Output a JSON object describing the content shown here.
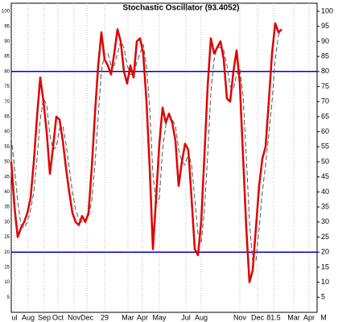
{
  "chart_data": {
    "type": "line",
    "title": "Stochastic Oscillator (93.4052)",
    "x": [
      0,
      1,
      2,
      3,
      4,
      5,
      6,
      7,
      8,
      9,
      10,
      11,
      12,
      13,
      14,
      15,
      16,
      17,
      18,
      19,
      20,
      21,
      22,
      23,
      24,
      25,
      26,
      27,
      28,
      29,
      30,
      31,
      32,
      33,
      34,
      35,
      36,
      37,
      38,
      39,
      40,
      41,
      42,
      43,
      44,
      45,
      46,
      47,
      48,
      49,
      50,
      51,
      52,
      53,
      54,
      55,
      56,
      57,
      58,
      59,
      60,
      61,
      62,
      63,
      64,
      65,
      66,
      67,
      68,
      69,
      70,
      71,
      72,
      73,
      74,
      75,
      76,
      77,
      78,
      79,
      80,
      81,
      82,
      83,
      84
    ],
    "series": [
      {
        "color": "#e00000",
        "dashed": false,
        "values": [
          50,
          35,
          25,
          28,
          30,
          33,
          38,
          50,
          65,
          78,
          70,
          60,
          46,
          55,
          65,
          64,
          57,
          48,
          40,
          33,
          30,
          29,
          32,
          30,
          33,
          48,
          66,
          82,
          93,
          84,
          82,
          79,
          86,
          94,
          90,
          80,
          76,
          82,
          78,
          90,
          91,
          86,
          70,
          48,
          21,
          38,
          56,
          68,
          63,
          66,
          63,
          57,
          42,
          50,
          56,
          54,
          38,
          21,
          19,
          30,
          52,
          75,
          91,
          86,
          88,
          90,
          84,
          71,
          70,
          80,
          87,
          76,
          52,
          28,
          10,
          14,
          28,
          42,
          51,
          55,
          70,
          86,
          96,
          93,
          94
        ]
      },
      {
        "color": "#555555",
        "dashed": true,
        "values": [
          58,
          48,
          37,
          29,
          28,
          30,
          34,
          40,
          51,
          64,
          71,
          69,
          59,
          54,
          55,
          61,
          62,
          56,
          48,
          40,
          34,
          31,
          30,
          30,
          32,
          37,
          49,
          65,
          80,
          86,
          86,
          82,
          82,
          86,
          90,
          88,
          82,
          79,
          79,
          83,
          86,
          89,
          82,
          68,
          46,
          36,
          38,
          54,
          62,
          66,
          64,
          62,
          54,
          50,
          49,
          53,
          49,
          38,
          26,
          23,
          34,
          52,
          73,
          84,
          88,
          88,
          87,
          82,
          75,
          74,
          79,
          81,
          72,
          52,
          30,
          17,
          17,
          28,
          40,
          49,
          59,
          70,
          84,
          92,
          94
        ]
      }
    ],
    "xlim": [
      0,
      95
    ],
    "xticks": [
      {
        "value": 1,
        "label": "ul"
      },
      {
        "value": 5.25,
        "label": "Aug"
      },
      {
        "value": 10.25,
        "label": "Sep"
      },
      {
        "value": 14.5,
        "label": "Oct"
      },
      {
        "value": 19.5,
        "label": "Nov"
      },
      {
        "value": 23.5,
        "label": "Dec"
      },
      29,
      {
        "value": 36.25,
        "label": "Mar"
      },
      {
        "value": 40.75,
        "label": "Apr"
      },
      {
        "value": 46,
        "label": "May"
      },
      {
        "value": 54.25,
        "label": "Jul"
      },
      {
        "value": 59,
        "label": "Aug"
      },
      {
        "value": 71,
        "label": "Nov"
      },
      {
        "value": 76.5,
        "label": "Dec"
      },
      81.5,
      {
        "value": 87.75,
        "label": "Mar"
      },
      {
        "value": 92.5,
        "label": "Apr"
      },
      {
        "value": 97,
        "label": "M"
      }
    ],
    "ylim": [
      0,
      100
    ],
    "yticks": [
      5,
      10,
      15,
      20,
      25,
      30,
      35,
      40,
      45,
      50,
      55,
      60,
      65,
      70,
      75,
      80,
      85,
      90,
      95,
      100
    ],
    "grid": true,
    "reference_lines": [
      20,
      80
    ],
    "reference_color": "#0000cc"
  }
}
